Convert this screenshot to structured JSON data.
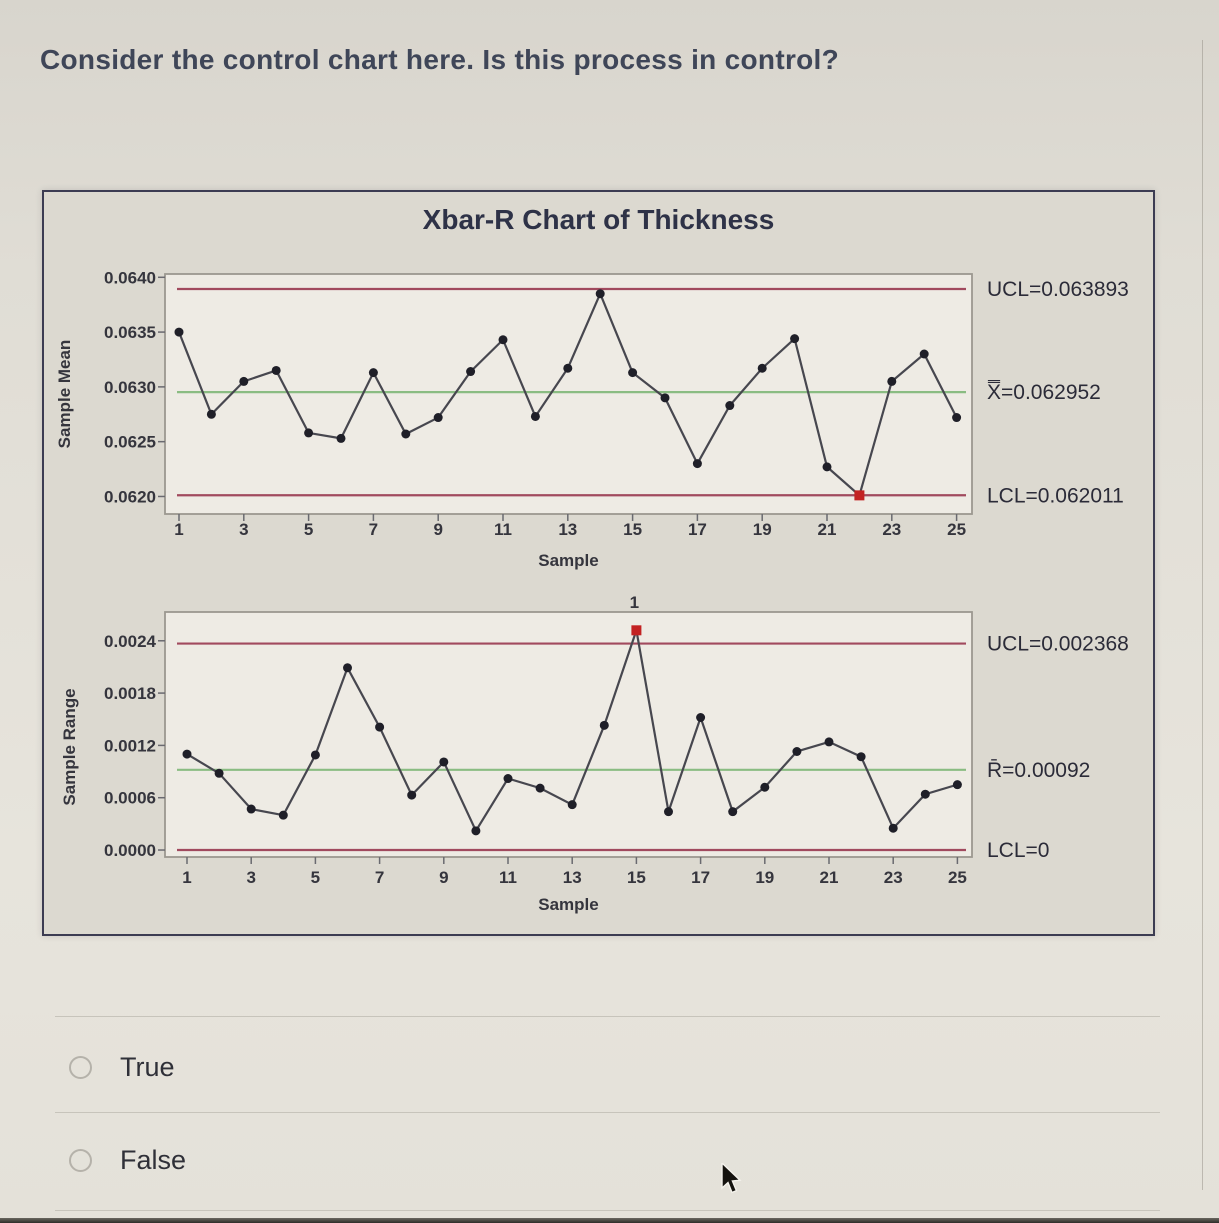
{
  "question": "Consider the control chart here. Is this process in control?",
  "chart_title": "Xbar-R Chart of Thickness",
  "options": [
    {
      "label": "True",
      "selected": false
    },
    {
      "label": "False",
      "selected": false
    }
  ],
  "chart_data": [
    {
      "type": "line",
      "name": "xbar-chart",
      "title": "Xbar-R Chart of Thickness",
      "ylabel": "Sample Mean",
      "xlabel": "Sample",
      "x": [
        1,
        2,
        3,
        4,
        5,
        6,
        7,
        8,
        9,
        10,
        11,
        12,
        13,
        14,
        15,
        16,
        17,
        18,
        19,
        20,
        21,
        22,
        23,
        24,
        25
      ],
      "values": [
        0.0635,
        0.06275,
        0.06305,
        0.06315,
        0.06258,
        0.06253,
        0.06313,
        0.06257,
        0.06272,
        0.06314,
        0.06343,
        0.06273,
        0.06317,
        0.06385,
        0.06313,
        0.0629,
        0.0623,
        0.06283,
        0.06317,
        0.06344,
        0.06227,
        0.06201,
        0.06305,
        0.0633,
        0.06272
      ],
      "ucl": 0.063893,
      "center": 0.062952,
      "lcl": 0.062011,
      "ucl_label": "UCL=0.063893",
      "center_label": "X̿=0.062952",
      "lcl_label": "LCL=0.062011",
      "ylim": [
        0.06184,
        0.06403
      ],
      "yticks": [
        0.064,
        0.0635,
        0.063,
        0.0625,
        0.062
      ],
      "ytick_labels": [
        "0.0640",
        "0.0635",
        "0.0630",
        "0.0625",
        "0.0620"
      ],
      "xticks": [
        1,
        3,
        5,
        7,
        9,
        11,
        13,
        15,
        17,
        19,
        21,
        23,
        25
      ],
      "out_of_control": [
        22
      ],
      "out_label": ""
    },
    {
      "type": "line",
      "name": "range-chart",
      "title": "Xbar-R Chart of Thickness",
      "ylabel": "Sample Range",
      "xlabel": "Sample",
      "x": [
        1,
        2,
        3,
        4,
        5,
        6,
        7,
        8,
        9,
        10,
        11,
        12,
        13,
        14,
        15,
        16,
        17,
        18,
        19,
        20,
        21,
        22,
        23,
        24,
        25
      ],
      "values": [
        0.0011,
        0.00088,
        0.00047,
        0.0004,
        0.00109,
        0.00209,
        0.00141,
        0.00063,
        0.00101,
        0.00022,
        0.00082,
        0.00071,
        0.00052,
        0.00143,
        0.00252,
        0.00044,
        0.00152,
        0.00044,
        0.00072,
        0.00113,
        0.00124,
        0.00107,
        0.00025,
        0.00064,
        0.00075
      ],
      "ucl": 0.002368,
      "center": 0.00092,
      "lcl": 0,
      "ucl_label": "UCL=0.002368",
      "center_label": "R̄=0.00092",
      "lcl_label": "LCL=0",
      "ylim": [
        -8e-05,
        0.00273
      ],
      "yticks": [
        0.0024,
        0.0018,
        0.0012,
        0.0006,
        0.0
      ],
      "ytick_labels": [
        "0.0024",
        "0.0018",
        "0.0012",
        "0.0006",
        "0.0000"
      ],
      "xticks": [
        1,
        3,
        5,
        7,
        9,
        11,
        13,
        15,
        17,
        19,
        21,
        23,
        25
      ],
      "out_of_control": [
        15
      ],
      "out_label": "1"
    }
  ]
}
